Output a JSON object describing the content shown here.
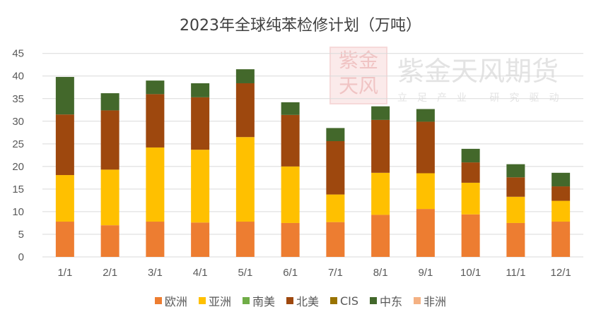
{
  "chart_data": {
    "type": "bar",
    "stacked": true,
    "title": "2023年全球纯苯检修计划（万吨）",
    "xlabel": "",
    "ylabel": "",
    "ylim": [
      0,
      45
    ],
    "yticks": [
      0,
      5,
      10,
      15,
      20,
      25,
      30,
      35,
      40,
      45
    ],
    "grid": true,
    "legend_position": "bottom",
    "categories": [
      "1/1",
      "2/1",
      "3/1",
      "4/1",
      "5/1",
      "6/1",
      "7/1",
      "8/1",
      "9/1",
      "10/1",
      "11/1",
      "12/1"
    ],
    "series": [
      {
        "name": "欧洲",
        "color": "#ED7D31",
        "values": [
          7.8,
          7.0,
          7.8,
          7.6,
          7.8,
          7.5,
          7.7,
          9.3,
          10.6,
          9.4,
          7.5,
          7.8
        ]
      },
      {
        "name": "亚洲",
        "color": "#FFC000",
        "values": [
          10.3,
          12.3,
          16.4,
          16.1,
          18.7,
          12.5,
          6.1,
          9.3,
          7.9,
          7.0,
          5.8,
          4.6
        ]
      },
      {
        "name": "南美",
        "color": "#70AD47",
        "values": [
          0,
          0,
          0,
          0,
          0,
          0,
          0,
          0,
          0,
          0,
          0,
          0
        ]
      },
      {
        "name": "北美",
        "color": "#9E480E",
        "values": [
          13.4,
          13.1,
          11.8,
          11.6,
          11.9,
          11.4,
          11.8,
          11.7,
          11.4,
          4.5,
          4.3,
          3.2
        ]
      },
      {
        "name": "CIS",
        "color": "#997300",
        "values": [
          0,
          0,
          0,
          0,
          0,
          0,
          0,
          0,
          0,
          0,
          0,
          0
        ]
      },
      {
        "name": "中东",
        "color": "#43682B",
        "values": [
          8.3,
          3.8,
          3.0,
          3.1,
          3.1,
          2.8,
          2.9,
          3.0,
          2.8,
          3.0,
          2.9,
          3.0
        ]
      },
      {
        "name": "非洲",
        "color": "#F4B183",
        "values": [
          0,
          0,
          0,
          0,
          0,
          0,
          0,
          0,
          0,
          0,
          0,
          0
        ]
      }
    ]
  },
  "watermark": {
    "brand": "紫金天风期货",
    "slogan": "立足产业 研究驱动",
    "seal": "紫金天风"
  }
}
